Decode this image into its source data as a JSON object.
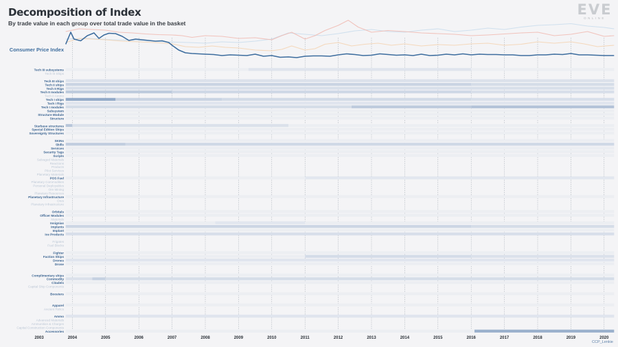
{
  "header": {
    "title": "Decomposition of Index",
    "subtitle": "By trade value in each group over total trade value in the basket"
  },
  "logo": {
    "text": "EVE",
    "sub": "ONLINE"
  },
  "credit": "CCP_Lenkie",
  "colors": {
    "cpi_line": "#3d6d9e",
    "faint_red": "#f0b8b0",
    "faint_orange": "#f3d2b0",
    "faint_blue": "#c8dcec",
    "heat_dark": "#5a7fad",
    "heat_light": "#e9ecf2",
    "label_strong": "#3c6592",
    "label_faint": "#bdc8d6"
  },
  "chart_data": [
    {
      "type": "line",
      "title": "",
      "ylabel": "Consumer Price Index",
      "x_range": [
        2003.8,
        2020.3
      ],
      "series": [
        {
          "name": "Consumer Price Index",
          "role": "main",
          "x": [
            2003.8,
            2003.95,
            2004.05,
            2004.25,
            2004.45,
            2004.65,
            2004.8,
            2004.95,
            2005.1,
            2005.3,
            2005.5,
            2005.7,
            2005.9,
            2006.1,
            2006.3,
            2006.5,
            2006.7,
            2006.9,
            2007.0,
            2007.2,
            2007.4,
            2007.6,
            2007.8,
            2008.0,
            2008.25,
            2008.5,
            2008.75,
            2009.0,
            2009.25,
            2009.5,
            2009.75,
            2010.0,
            2010.25,
            2010.5,
            2010.75,
            2011.0,
            2011.25,
            2011.5,
            2011.75,
            2012.0,
            2012.25,
            2012.5,
            2012.75,
            2013.0,
            2013.25,
            2013.5,
            2013.75,
            2014.0,
            2014.25,
            2014.5,
            2014.75,
            2015.0,
            2015.25,
            2015.5,
            2015.75,
            2016.0,
            2016.25,
            2016.5,
            2016.75,
            2017.0,
            2017.25,
            2017.5,
            2017.75,
            2018.0,
            2018.25,
            2018.5,
            2018.75,
            2019.0,
            2019.25,
            2019.5,
            2019.75,
            2020.0,
            2020.3
          ],
          "y": [
            0.55,
            0.9,
            0.7,
            0.65,
            0.8,
            0.88,
            0.72,
            0.82,
            0.87,
            0.86,
            0.78,
            0.66,
            0.7,
            0.68,
            0.66,
            0.64,
            0.65,
            0.6,
            0.52,
            0.38,
            0.3,
            0.28,
            0.27,
            0.26,
            0.25,
            0.22,
            0.24,
            0.23,
            0.22,
            0.26,
            0.2,
            0.22,
            0.17,
            0.18,
            0.16,
            0.2,
            0.21,
            0.21,
            0.2,
            0.24,
            0.27,
            0.25,
            0.22,
            0.23,
            0.27,
            0.25,
            0.23,
            0.24,
            0.22,
            0.26,
            0.22,
            0.23,
            0.26,
            0.24,
            0.27,
            0.24,
            0.26,
            0.25,
            0.25,
            0.24,
            0.24,
            0.22,
            0.22,
            0.24,
            0.24,
            0.26,
            0.25,
            0.28,
            0.24,
            0.24,
            0.23,
            0.22,
            0.22
          ]
        },
        {
          "name": "",
          "role": "faint_red",
          "x": [
            2003.8,
            2004.2,
            2004.6,
            2005.0,
            2005.4,
            2005.8,
            2006.2,
            2006.6,
            2007.0,
            2007.3,
            2007.6,
            2008.0,
            2008.5,
            2009.0,
            2009.5,
            2010.0,
            2010.3,
            2010.6,
            2011.0,
            2011.3,
            2011.6,
            2012.0,
            2012.3,
            2012.6,
            2013.0,
            2013.5,
            2014.0,
            2014.5,
            2015.0,
            2015.5,
            2016.0,
            2016.5,
            2017.0,
            2017.5,
            2018.0,
            2018.5,
            2019.0,
            2019.5,
            2020.0,
            2020.3
          ],
          "y": [
            0.92,
            1.0,
            0.98,
            0.96,
            0.9,
            0.88,
            0.85,
            0.83,
            0.82,
            0.8,
            0.75,
            0.8,
            0.78,
            0.72,
            0.74,
            0.68,
            0.8,
            0.9,
            0.7,
            0.8,
            0.95,
            1.1,
            1.25,
            1.05,
            0.9,
            0.95,
            0.92,
            0.88,
            0.86,
            0.84,
            0.8,
            0.82,
            0.85,
            0.88,
            0.9,
            0.8,
            0.84,
            0.92,
            0.78,
            0.8
          ]
        },
        {
          "name": "",
          "role": "faint_orange",
          "x": [
            2003.8,
            2004.2,
            2004.6,
            2005.0,
            2005.5,
            2006.0,
            2006.5,
            2007.0,
            2007.4,
            2007.8,
            2008.2,
            2008.6,
            2009.0,
            2009.5,
            2010.0,
            2010.3,
            2010.6,
            2011.0,
            2011.3,
            2011.6,
            2012.0,
            2012.4,
            2012.8,
            2013.2,
            2013.6,
            2014.0,
            2014.5,
            2015.0,
            2015.5,
            2016.0,
            2016.5,
            2017.0,
            2017.5,
            2018.0,
            2018.5,
            2019.0,
            2019.4,
            2019.8,
            2020.3
          ],
          "y": [
            0.6,
            0.72,
            0.7,
            0.68,
            0.64,
            0.62,
            0.6,
            0.56,
            0.48,
            0.46,
            0.5,
            0.46,
            0.44,
            0.38,
            0.36,
            0.4,
            0.5,
            0.38,
            0.42,
            0.55,
            0.6,
            0.5,
            0.55,
            0.58,
            0.52,
            0.56,
            0.5,
            0.54,
            0.52,
            0.56,
            0.58,
            0.52,
            0.55,
            0.62,
            0.58,
            0.62,
            0.56,
            0.48,
            0.52
          ]
        },
        {
          "name": "",
          "role": "faint_blue",
          "x": [
            2003.8,
            2004.5,
            2005.2,
            2006.0,
            2006.8,
            2007.5,
            2008.0,
            2008.5,
            2009.0,
            2009.5,
            2010.0,
            2010.5,
            2011.0,
            2011.5,
            2012.0,
            2012.5,
            2013.0,
            2013.5,
            2014.0,
            2014.5,
            2015.0,
            2015.5,
            2016.0,
            2016.5,
            2017.0,
            2017.5,
            2018.0,
            2018.5,
            2019.0,
            2019.5,
            2020.0,
            2020.3
          ],
          "y": [
            0.7,
            0.72,
            0.68,
            0.66,
            0.62,
            0.6,
            0.58,
            0.62,
            0.6,
            0.64,
            0.7,
            0.88,
            0.84,
            0.8,
            0.86,
            0.94,
            0.98,
            0.92,
            0.9,
            0.96,
            1.0,
            0.92,
            0.96,
            1.02,
            0.98,
            1.05,
            1.1,
            1.12,
            1.15,
            1.08,
            1.04,
            1.0
          ]
        }
      ]
    },
    {
      "type": "heatmap",
      "title": "",
      "x_range": [
        2003,
        2020.3
      ],
      "x_ticks": [
        2003,
        2004,
        2005,
        2006,
        2007,
        2008,
        2009,
        2010,
        2011,
        2012,
        2013,
        2014,
        2015,
        2016,
        2017,
        2018,
        2019,
        2020
      ],
      "rows": [
        {
          "label": "Tech III subsystems",
          "strong": true,
          "segs": [
            [
              2009.3,
              2016.0,
              0.07
            ]
          ]
        },
        {
          "label": "Tech III Ships",
          "strong": false,
          "segs": []
        },
        {
          "label": "",
          "strong": false,
          "segs": []
        },
        {
          "label": "Tech III ships",
          "strong": true,
          "segs": [
            [
              2003.8,
              2020.3,
              0.1
            ]
          ]
        },
        {
          "label": "Tech II ships",
          "strong": true,
          "segs": [
            [
              2003.8,
              2016.0,
              0.22
            ],
            [
              2016.0,
              2020.3,
              0.14
            ]
          ]
        },
        {
          "label": "Tech II Rigs",
          "strong": true,
          "segs": [
            [
              2003.8,
              2020.3,
              0.12
            ]
          ]
        },
        {
          "label": "Tech II modules",
          "strong": true,
          "segs": [
            [
              2003.8,
              2007.0,
              0.3
            ],
            [
              2007.0,
              2016.0,
              0.18
            ],
            [
              2016.0,
              2020.3,
              0.12
            ]
          ]
        },
        {
          "label": "Tech II Ammo",
          "strong": false,
          "segs": []
        },
        {
          "label": "Tech I ships",
          "strong": true,
          "segs": [
            [
              2003.8,
              2005.3,
              0.6
            ],
            [
              2005.3,
              2008.5,
              0.22
            ],
            [
              2008.5,
              2016.0,
              0.16
            ],
            [
              2016.0,
              2020.3,
              0.12
            ]
          ]
        },
        {
          "label": "Tech I Rigs",
          "strong": true,
          "segs": [
            [
              2003.8,
              2020.3,
              0.06
            ]
          ]
        },
        {
          "label": "Tech I modules",
          "strong": true,
          "segs": [
            [
              2003.8,
              2012.4,
              0.14
            ],
            [
              2012.4,
              2016.0,
              0.3
            ],
            [
              2016.0,
              2020.3,
              0.38
            ]
          ]
        },
        {
          "label": "Subsystem",
          "strong": true,
          "segs": []
        },
        {
          "label": "Structure Module",
          "strong": true,
          "segs": []
        },
        {
          "label": "Structure",
          "strong": true,
          "segs": []
        },
        {
          "label": "",
          "strong": false,
          "segs": []
        },
        {
          "label": "Starbase structures",
          "strong": true,
          "segs": [
            [
              2003.8,
              2004.0,
              0.35
            ],
            [
              2004.0,
              2010.5,
              0.1
            ]
          ]
        },
        {
          "label": "Special Edition Ships",
          "strong": true,
          "segs": []
        },
        {
          "label": "Sovereignty Structures",
          "strong": true,
          "segs": []
        },
        {
          "label": "",
          "strong": false,
          "segs": []
        },
        {
          "label": "SKINs",
          "strong": true,
          "segs": []
        },
        {
          "label": "Skills",
          "strong": true,
          "segs": [
            [
              2003.8,
              2005.6,
              0.28
            ],
            [
              2005.6,
              2020.3,
              0.18
            ]
          ]
        },
        {
          "label": "Services",
          "strong": true,
          "segs": []
        },
        {
          "label": "Security Tags",
          "strong": true,
          "segs": []
        },
        {
          "label": "Scripts",
          "strong": true,
          "segs": []
        },
        {
          "label": "Salvaged Materials",
          "strong": false,
          "segs": []
        },
        {
          "label": "Reactions",
          "strong": false,
          "segs": []
        },
        {
          "label": "Products",
          "strong": false,
          "segs": []
        },
        {
          "label": "Pilot Services",
          "strong": false,
          "segs": []
        },
        {
          "label": "Planetary Materials",
          "strong": false,
          "segs": []
        },
        {
          "label": "POS Fuel",
          "strong": true,
          "segs": [
            [
              2011.0,
              2020.3,
              0.05
            ]
          ]
        },
        {
          "label": "Planetary Commodities",
          "strong": false,
          "segs": []
        },
        {
          "label": "Personal Deployables",
          "strong": false,
          "segs": []
        },
        {
          "label": "Ore Mining",
          "strong": false,
          "segs": []
        },
        {
          "label": "Planetary Resources",
          "strong": false,
          "segs": []
        },
        {
          "label": "Planetary Infrastructure",
          "strong": true,
          "segs": []
        },
        {
          "label": "Ores",
          "strong": false,
          "segs": []
        },
        {
          "label": "Planetary Infrastructure",
          "strong": false,
          "segs": []
        },
        {
          "label": "",
          "strong": false,
          "segs": []
        },
        {
          "label": "Orbitals",
          "strong": true,
          "segs": []
        },
        {
          "label": "Officer Modules",
          "strong": true,
          "segs": []
        },
        {
          "label": "Materials",
          "strong": false,
          "segs": []
        },
        {
          "label": "Insignias",
          "strong": true,
          "segs": [
            [
              2008.3,
              2011.0,
              0.05
            ]
          ]
        },
        {
          "label": "Implants",
          "strong": true,
          "segs": [
            [
              2003.8,
              2016.0,
              0.2
            ],
            [
              2016.0,
              2020.3,
              0.14
            ]
          ]
        },
        {
          "label": "Implant",
          "strong": true,
          "segs": []
        },
        {
          "label": "Ice Products",
          "strong": true,
          "segs": [
            [
              2003.8,
              2020.3,
              0.12
            ]
          ]
        },
        {
          "label": "",
          "strong": false,
          "segs": []
        },
        {
          "label": "Frigates",
          "strong": false,
          "segs": []
        },
        {
          "label": "Fuel Blocks",
          "strong": false,
          "segs": []
        },
        {
          "label": "",
          "strong": false,
          "segs": []
        },
        {
          "label": "Fighter",
          "strong": true,
          "segs": []
        },
        {
          "label": "Faction Ships",
          "strong": true,
          "segs": [
            [
              2011.0,
              2016.0,
              0.15
            ],
            [
              2016.0,
              2020.3,
              0.1
            ]
          ]
        },
        {
          "label": "Drones",
          "strong": true,
          "segs": [
            [
              2003.8,
              2020.3,
              0.06
            ]
          ]
        },
        {
          "label": "Drone",
          "strong": true,
          "segs": []
        },
        {
          "label": "",
          "strong": false,
          "segs": []
        },
        {
          "label": "",
          "strong": false,
          "segs": []
        },
        {
          "label": "Complimentary ships",
          "strong": true,
          "segs": []
        },
        {
          "label": "Commodity",
          "strong": true,
          "segs": [
            [
              2003.8,
              2004.6,
              0.1
            ],
            [
              2004.6,
              2005.0,
              0.25
            ],
            [
              2005.0,
              2020.3,
              0.14
            ]
          ]
        },
        {
          "label": "Citadels",
          "strong": true,
          "segs": []
        },
        {
          "label": "Capital Ship Components",
          "strong": false,
          "segs": []
        },
        {
          "label": "",
          "strong": false,
          "segs": []
        },
        {
          "label": "Boosters",
          "strong": true,
          "segs": []
        },
        {
          "label": "",
          "strong": false,
          "segs": []
        },
        {
          "label": "",
          "strong": false,
          "segs": []
        },
        {
          "label": "Apparel",
          "strong": true,
          "segs": []
        },
        {
          "label": "Ancient Relics",
          "strong": false,
          "segs": []
        },
        {
          "label": "",
          "strong": false,
          "segs": []
        },
        {
          "label": "Ammo",
          "strong": true,
          "segs": [
            [
              2003.8,
              2020.3,
              0.06
            ]
          ]
        },
        {
          "label": "Advanced Materials",
          "strong": false,
          "segs": []
        },
        {
          "label": "Ammunition & Charges",
          "strong": false,
          "segs": []
        },
        {
          "label": "Capital Construction Components",
          "strong": false,
          "segs": []
        },
        {
          "label": "Accessories",
          "strong": true,
          "segs": [
            [
              2016.1,
              2020.3,
              0.55
            ]
          ]
        }
      ]
    }
  ]
}
